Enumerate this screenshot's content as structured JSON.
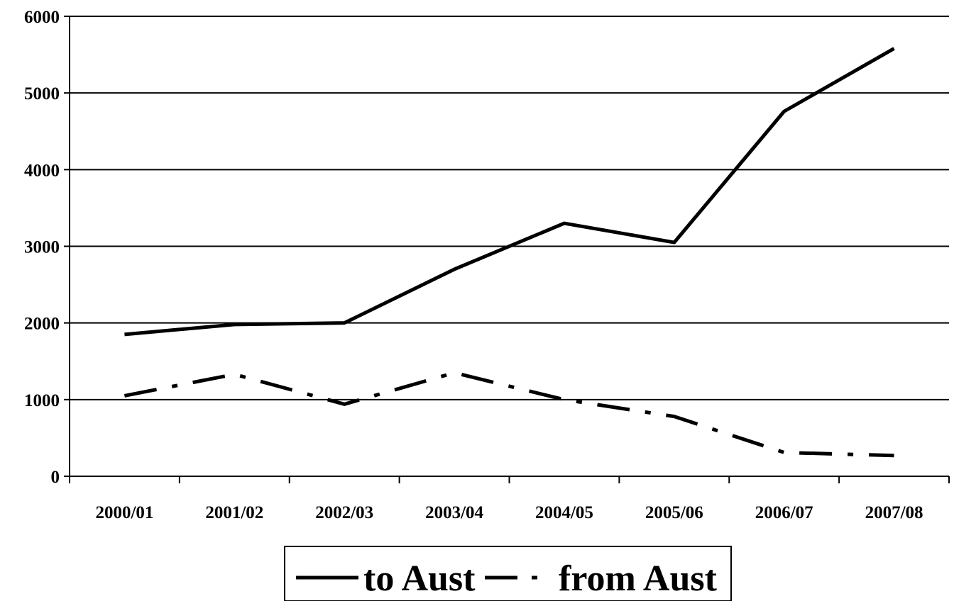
{
  "chart_data": {
    "type": "line",
    "categories": [
      "2000/01",
      "2001/02",
      "2002/03",
      "2003/04",
      "2004/05",
      "2005/06",
      "2006/07",
      "2007/08"
    ],
    "series": [
      {
        "name": "to Aust",
        "values": [
          1850,
          1980,
          2000,
          2700,
          3300,
          3050,
          4760,
          5580
        ],
        "style": "solid",
        "color": "#000000"
      },
      {
        "name": "from Aust",
        "values": [
          1050,
          1330,
          940,
          1350,
          1000,
          780,
          310,
          270
        ],
        "style": "dash-dot",
        "color": "#000000"
      }
    ],
    "ylim": [
      0,
      6000
    ],
    "yticks": [
      0,
      1000,
      2000,
      3000,
      4000,
      5000,
      6000
    ],
    "grid": true,
    "legend_position": "bottom-center"
  }
}
